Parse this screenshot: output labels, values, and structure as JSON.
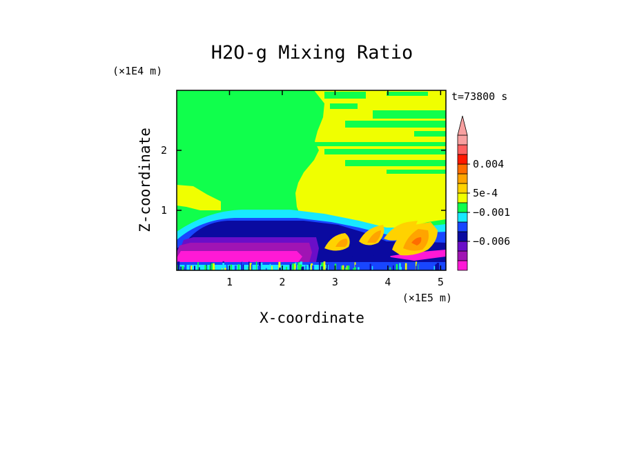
{
  "chart_data": {
    "type": "heatmap",
    "title": "H2O-g Mixing Ratio",
    "time_label": "t=73800 s",
    "xlabel": "X-coordinate",
    "ylabel": "Z-coordinate",
    "x_unit": "(×1E5 m)",
    "y_unit": "(×1E4 m)",
    "xlim": [
      0,
      5.1
    ],
    "ylim": [
      0,
      3.0
    ],
    "x_ticks": [
      1,
      2,
      3,
      4,
      5
    ],
    "y_ticks": [
      1,
      2
    ],
    "colorbar": {
      "levels": [
        {
          "color": "#ff19d6"
        },
        {
          "color": "#a014b4"
        },
        {
          "color": "#6a0ec8"
        },
        {
          "color": "#0a0aa0"
        },
        {
          "color": "#1846ff"
        },
        {
          "color": "#18e8ff"
        },
        {
          "color": "#10ff4c"
        },
        {
          "color": "#f0ff00"
        },
        {
          "color": "#ffd200"
        },
        {
          "color": "#ffa400"
        },
        {
          "color": "#ff6c00"
        },
        {
          "color": "#ff1800"
        },
        {
          "color": "#ff6060"
        },
        {
          "color": "#f8a0a0"
        }
      ],
      "labels": [
        "0.004",
        "5e-4",
        "−0.001",
        "−0.006"
      ]
    },
    "regions": [
      {
        "name": "background-green",
        "color": "#10ff4c"
      },
      {
        "name": "upper-left-yellow",
        "color": "#f0ff00"
      },
      {
        "name": "cyan-layer",
        "color": "#18e8ff"
      },
      {
        "name": "blue-layer",
        "color": "#1846ff"
      },
      {
        "name": "navy-layer",
        "color": "#0a0aa0"
      },
      {
        "name": "purple-layer",
        "color": "#6a0ec8"
      },
      {
        "name": "violet-layer",
        "color": "#a014b4"
      },
      {
        "name": "magenta-layer",
        "color": "#ff19d6"
      },
      {
        "name": "yellow-plume",
        "color": "#f0ff00"
      },
      {
        "name": "orange-cells",
        "color": "#ffa400"
      }
    ]
  }
}
